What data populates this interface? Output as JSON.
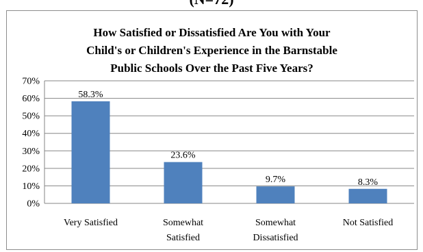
{
  "cut_title": "(N=72)",
  "chart_data": {
    "type": "bar",
    "title_lines": [
      "How Satisfied or Dissatisfied Are You with Your",
      "Child's or Children's Experience in the Barnstable",
      "Public Schools Over the Past Five Years?"
    ],
    "categories": [
      [
        "Very Satisfied"
      ],
      [
        "Somewhat",
        "Satisfied"
      ],
      [
        "Somewhat",
        "Dissatisfied"
      ],
      [
        "Not Satisfied"
      ]
    ],
    "values": [
      58.3,
      23.6,
      9.7,
      8.3
    ],
    "data_labels": [
      "58.3%",
      "23.6%",
      "9.7%",
      "8.3%"
    ],
    "ylim": [
      0,
      70
    ],
    "yticks": [
      "0%",
      "10%",
      "20%",
      "30%",
      "40%",
      "50%",
      "60%",
      "70%"
    ],
    "grid": true,
    "bar_color": "#4f81bd"
  }
}
